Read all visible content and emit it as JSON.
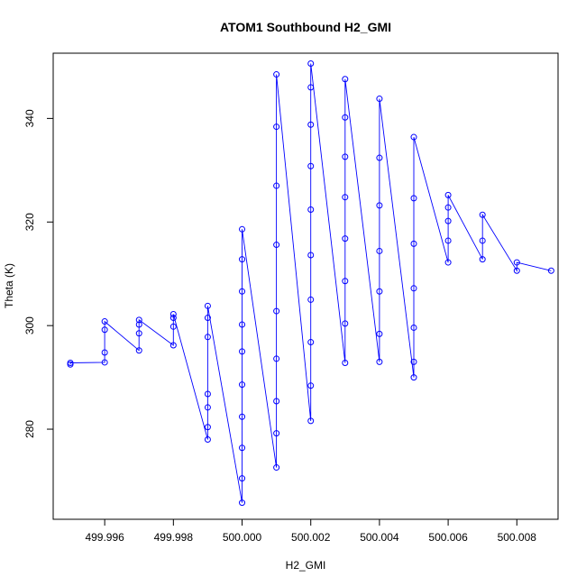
{
  "chart_data": {
    "type": "scatter",
    "title": "ATOM1 Southbound H2_GMI",
    "xlabel": "H2_GMI",
    "ylabel": "Theta (K)",
    "xlim": [
      499.9945,
      500.0092
    ],
    "ylim": [
      262.6,
      352.6
    ],
    "x_ticks": [
      499.996,
      499.998,
      500.0,
      500.002,
      500.004,
      500.006,
      500.008
    ],
    "x_tick_labels": [
      "499.996",
      "499.998",
      "500.000",
      "500.002",
      "500.004",
      "500.006",
      "500.008"
    ],
    "y_ticks": [
      280,
      300,
      320,
      340
    ],
    "y_tick_labels": [
      "280",
      "300",
      "320",
      "340"
    ],
    "color": "#0000ff",
    "marker": "open-circle",
    "connected": true,
    "grid": false,
    "series": [
      {
        "x": [
          499.995,
          499.995,
          499.996,
          499.996,
          499.996,
          499.996,
          499.997,
          499.997,
          499.997,
          499.997,
          499.998,
          499.998,
          499.998,
          499.998,
          499.999,
          499.999,
          499.999,
          499.999,
          499.999,
          499.999,
          499.999,
          500.0,
          500.0,
          500.0,
          500.0,
          500.0,
          500.0,
          500.0,
          500.0,
          500.0,
          500.0,
          500.001,
          500.001,
          500.001,
          500.001,
          500.001,
          500.001,
          500.001,
          500.001,
          500.001,
          500.002,
          500.002,
          500.002,
          500.002,
          500.002,
          500.002,
          500.002,
          500.002,
          500.002,
          500.002,
          500.003,
          500.003,
          500.003,
          500.003,
          500.003,
          500.003,
          500.003,
          500.003,
          500.004,
          500.004,
          500.004,
          500.004,
          500.004,
          500.004,
          500.004,
          500.005,
          500.005,
          500.005,
          500.005,
          500.005,
          500.005,
          500.005,
          500.006,
          500.006,
          500.006,
          500.006,
          500.006,
          500.007,
          500.007,
          500.007,
          500.008,
          500.008,
          500.009
        ],
        "y": [
          292.5,
          292.8,
          292.9,
          294.8,
          299.2,
          300.8,
          295.2,
          298.5,
          300.2,
          301.1,
          296.2,
          299.8,
          301.5,
          302.2,
          278.0,
          280.4,
          284.2,
          286.8,
          297.8,
          301.5,
          303.8,
          265.8,
          270.5,
          276.4,
          282.4,
          288.6,
          295.0,
          300.2,
          306.6,
          312.8,
          318.6,
          272.6,
          279.2,
          285.4,
          293.6,
          302.8,
          315.6,
          327.0,
          338.4,
          348.5,
          281.6,
          288.4,
          296.8,
          305.0,
          313.6,
          322.4,
          330.8,
          338.8,
          346.0,
          350.6,
          292.8,
          300.4,
          308.6,
          316.8,
          324.8,
          332.6,
          340.2,
          347.6,
          293.0,
          298.4,
          306.6,
          314.4,
          323.2,
          332.4,
          343.8,
          290.0,
          293.0,
          299.6,
          307.2,
          315.8,
          324.6,
          336.4,
          312.2,
          316.4,
          320.2,
          322.8,
          325.2,
          312.8,
          316.4,
          321.4,
          310.6,
          312.2,
          310.6
        ]
      }
    ]
  }
}
